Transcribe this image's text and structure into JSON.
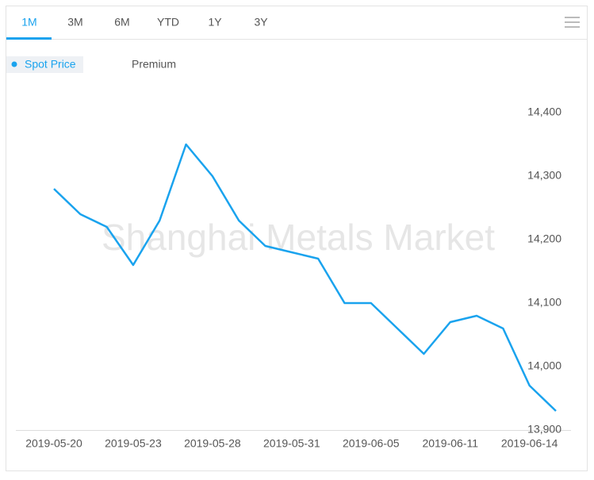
{
  "tabs": [
    "1M",
    "3M",
    "6M",
    "YTD",
    "1Y",
    "3Y"
  ],
  "chart_data": {
    "type": "line",
    "watermark": "Shanghai Metals Market",
    "categories": [
      "2019-05-20",
      null,
      null,
      "2019-05-23",
      null,
      null,
      "2019-05-28",
      null,
      null,
      "2019-05-31",
      null,
      null,
      "2019-06-05",
      null,
      null,
      "2019-06-11",
      null,
      null,
      "2019-06-14",
      null
    ],
    "series": [
      {
        "name": "Spot Price",
        "color": "#1aa3ee",
        "values": [
          14280,
          14240,
          14220,
          14160,
          14230,
          14350,
          14300,
          14230,
          14190,
          14180,
          14170,
          14100,
          14100,
          14060,
          14020,
          14070,
          14080,
          14060,
          13970,
          13930
        ]
      }
    ],
    "hidden_series": [
      "Premium"
    ],
    "ylim": [
      13900,
      14400
    ],
    "yticks": [
      {
        "value": 13900,
        "label": "13,900"
      },
      {
        "value": 14000,
        "label": "14,000"
      },
      {
        "value": 14100,
        "label": "14,100"
      },
      {
        "value": 14200,
        "label": "14,200"
      },
      {
        "value": 14300,
        "label": "14,300"
      },
      {
        "value": 14400,
        "label": "14,400"
      }
    ],
    "grid": false
  }
}
